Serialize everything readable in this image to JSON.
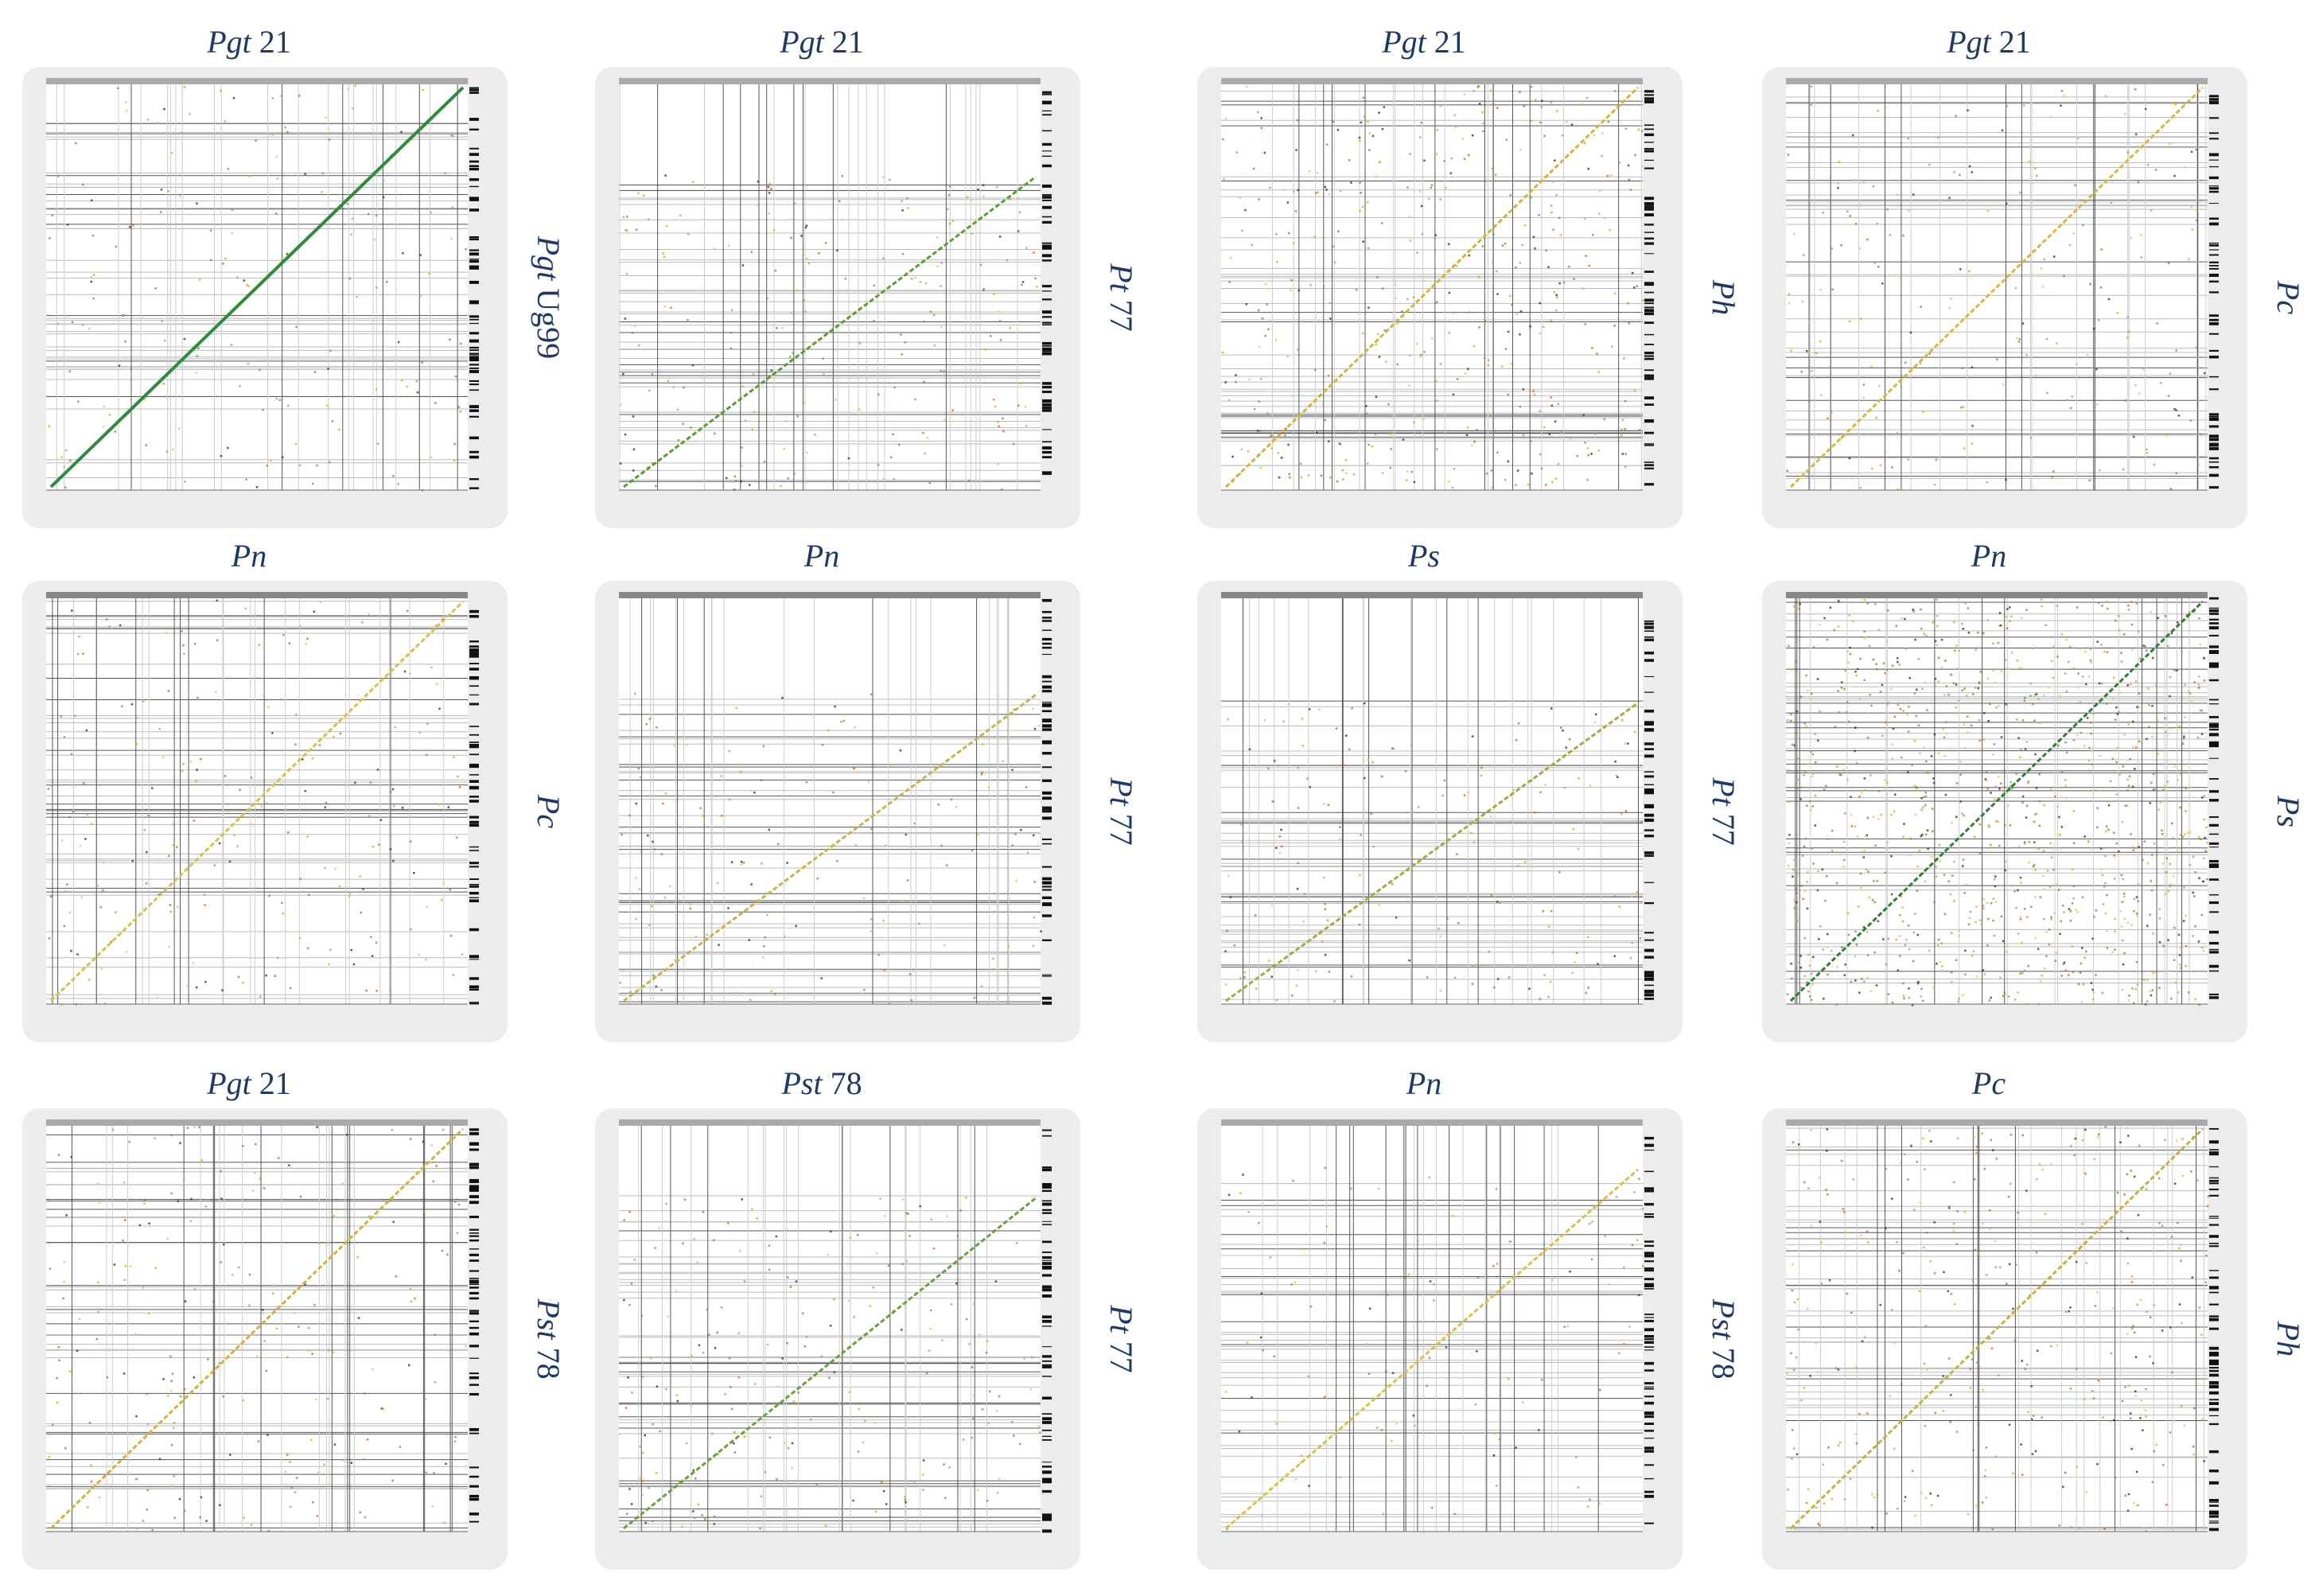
{
  "panels": [
    {
      "top": {
        "species": "Pgt",
        "strain": "21"
      },
      "right": {
        "species": "Pgt",
        "strain": "Ug99"
      }
    },
    {
      "top": {
        "species": "Pgt",
        "strain": "21"
      },
      "right": {
        "species": "Pt",
        "strain": "77"
      }
    },
    {
      "top": {
        "species": "Pgt",
        "strain": "21"
      },
      "right": {
        "species": "Ph"
      }
    },
    {
      "top": {
        "species": "Pgt",
        "strain": "21"
      },
      "right": {
        "species": "Pc"
      }
    },
    {
      "top": {
        "species": "Pn"
      },
      "right": {
        "species": "Pc"
      }
    },
    {
      "top": {
        "species": "Pn"
      },
      "right": {
        "species": "Pt",
        "strain": "77"
      }
    },
    {
      "top": {
        "species": "Ps"
      },
      "right": {
        "species": "Pt",
        "strain": "77"
      }
    },
    {
      "top": {
        "species": "Pn"
      },
      "right": {
        "species": "Ps"
      }
    },
    {
      "top": {
        "species": "Pgt",
        "strain": "21"
      },
      "right": {
        "species": "Pst",
        "strain": "78"
      }
    },
    {
      "top": {
        "species": "Pst",
        "strain": "78"
      },
      "right": {
        "species": "Pt",
        "strain": "77"
      }
    },
    {
      "top": {
        "species": "Pn"
      },
      "right": {
        "species": "Pst",
        "strain": "78"
      }
    },
    {
      "top": {
        "species": "Pc"
      },
      "right": {
        "species": "Ph"
      }
    }
  ]
}
